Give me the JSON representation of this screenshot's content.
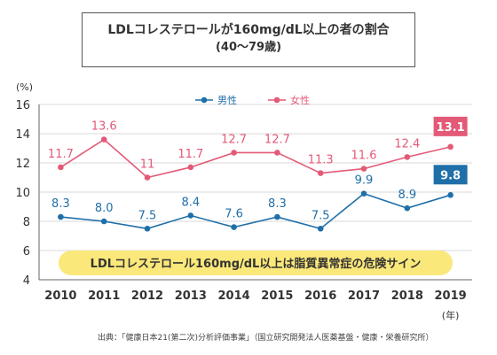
{
  "title": {
    "line1": "LDLコレステロールが160mg/dL以上の者の割合",
    "line2": "(40〜79歳)"
  },
  "banner": "LDLコレステロール160mg/dL以上は脂質異常症の危険サイン",
  "source": "出典：「健康日本21(第二次)分析評価事業」（国立研究開発法人医薬基盤・健康・栄養研究所）",
  "colors": {
    "male": "#1f6fa8",
    "female": "#e35a77",
    "banner_bg": "#fbe87a",
    "grid": "#d9d9d9",
    "axis": "#666666"
  },
  "chart_data": {
    "type": "line",
    "x": [
      "2010",
      "2011",
      "2012",
      "2013",
      "2014",
      "2015",
      "2016",
      "2017",
      "2018",
      "2019"
    ],
    "xunit": "(年)",
    "yunit": "(%)",
    "ylim": [
      4,
      16
    ],
    "yticks": [
      4,
      6,
      8,
      10,
      12,
      14,
      16
    ],
    "grid": true,
    "legend": "top-center",
    "series": [
      {
        "name": "男性",
        "key": "male",
        "values": [
          8.3,
          8.0,
          7.5,
          8.4,
          7.6,
          8.3,
          7.5,
          9.9,
          8.9,
          9.8
        ],
        "labels": [
          "8.3",
          "8.0",
          "7.5",
          "8.4",
          "7.6",
          "8.3",
          "7.5",
          "9.9",
          "8.9",
          "9.8"
        ]
      },
      {
        "name": "女性",
        "key": "female",
        "values": [
          11.7,
          13.6,
          11,
          11.7,
          12.7,
          12.7,
          11.3,
          11.6,
          12.4,
          13.1
        ],
        "labels": [
          "11.7",
          "13.6",
          "11",
          "11.7",
          "12.7",
          "12.7",
          "11.3",
          "11.6",
          "12.4",
          "13.1"
        ]
      }
    ]
  }
}
